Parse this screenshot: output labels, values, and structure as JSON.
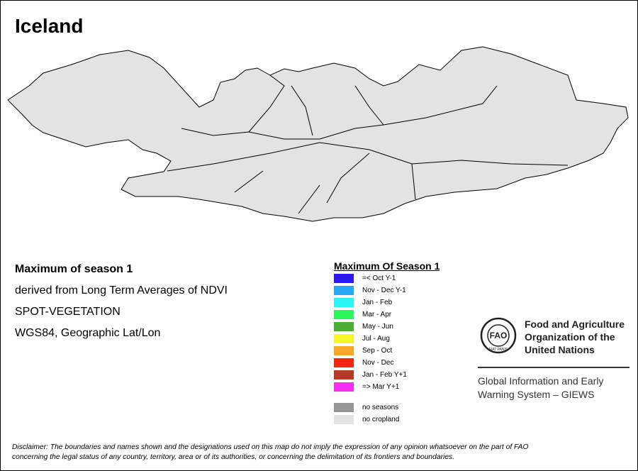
{
  "header": {
    "title": "Iceland"
  },
  "info": {
    "lines": [
      "Maximum of season 1",
      "derived from Long Term Averages of NDVI",
      "SPOT-VEGETATION",
      "WGS84, Geographic Lat/Lon"
    ]
  },
  "legend": {
    "title": "Maximum Of Season 1",
    "items": [
      {
        "label": "=< Oct Y-1",
        "color": "#2b18f5"
      },
      {
        "label": "Nov - Dec Y-1",
        "color": "#26a7f7"
      },
      {
        "label": "Jan - Feb",
        "color": "#2ef5f5"
      },
      {
        "label": "Mar - Apr",
        "color": "#2ef55b"
      },
      {
        "label": "May - Jun",
        "color": "#4cad35"
      },
      {
        "label": "Jul - Aug",
        "color": "#f5f52a"
      },
      {
        "label": "Sep - Oct",
        "color": "#f7a82b"
      },
      {
        "label": "Nov - Dec",
        "color": "#f5260f"
      },
      {
        "label": "Jan - Feb Y+1",
        "color": "#b53a28"
      },
      {
        "label": "=> Mar Y+1",
        "color": "#f52ef0"
      }
    ],
    "extra": [
      {
        "label": "no seasons",
        "color": "#969696"
      },
      {
        "label": "no cropland",
        "color": "#e3e3e3"
      }
    ]
  },
  "logo": {
    "letters": "FAO",
    "motto": "FIAT PANIS",
    "org_lines": [
      "Food and Agriculture",
      "Organization of the",
      "United Nations"
    ],
    "system_lines": [
      "Global Information and Early",
      "Warning System – GIEWS"
    ]
  },
  "disclaimer": {
    "lines": [
      "Disclaimer: The boundaries and names shown and the designations used on this map do not imply the expression of any opinion whatsoever on the part of FAO",
      "concerning the legal status of any country, territory, area or of its authorities, or concerning the delimitation of its frontiers and boundaries."
    ]
  }
}
